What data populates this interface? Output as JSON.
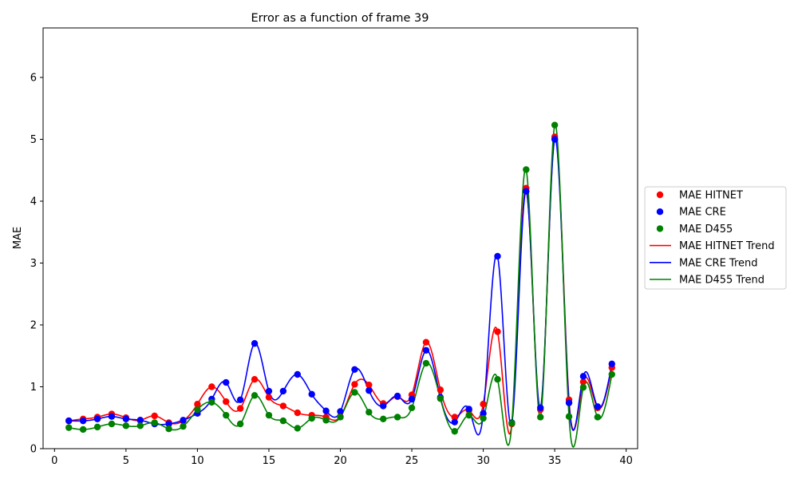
{
  "chart_data": {
    "type": "line",
    "title": "Error as a function of frame 39",
    "xlabel": "",
    "ylabel": "MAE",
    "xlim": [
      -0.8,
      40.8
    ],
    "ylim": [
      0,
      6.8
    ],
    "xticks": [
      0,
      5,
      10,
      15,
      20,
      25,
      30,
      35,
      40
    ],
    "yticks": [
      0,
      1,
      2,
      3,
      4,
      5,
      6
    ],
    "grid": false,
    "legend_position": "center-right-outside",
    "x": [
      1,
      2,
      3,
      4,
      5,
      6,
      7,
      8,
      9,
      10,
      11,
      12,
      13,
      14,
      15,
      16,
      17,
      18,
      19,
      20,
      21,
      22,
      23,
      24,
      25,
      26,
      27,
      28,
      29,
      30,
      31,
      32,
      33,
      34,
      35,
      36,
      37,
      38,
      39
    ],
    "series": [
      {
        "name": "MAE HITNET",
        "color": "#ff0000",
        "values": [
          0.45,
          0.48,
          0.51,
          0.56,
          0.5,
          0.46,
          0.53,
          0.42,
          0.45,
          0.72,
          1.0,
          0.76,
          0.65,
          1.12,
          0.83,
          0.69,
          0.58,
          0.54,
          0.51,
          0.52,
          1.04,
          1.03,
          0.73,
          0.84,
          0.87,
          1.72,
          0.95,
          0.51,
          0.62,
          0.72,
          1.89,
          0.4,
          4.21,
          0.63,
          5.04,
          0.79,
          1.08,
          0.66,
          1.31
        ]
      },
      {
        "name": "MAE CRE",
        "color": "#0000ff",
        "values": [
          0.45,
          0.45,
          0.48,
          0.52,
          0.48,
          0.46,
          0.4,
          0.4,
          0.46,
          0.57,
          0.8,
          1.07,
          0.79,
          1.7,
          0.93,
          0.93,
          1.2,
          0.88,
          0.61,
          0.6,
          1.28,
          0.94,
          0.69,
          0.85,
          0.8,
          1.59,
          0.83,
          0.43,
          0.64,
          0.57,
          3.11,
          0.42,
          4.16,
          0.66,
          5.0,
          0.74,
          1.17,
          0.68,
          1.37
        ]
      },
      {
        "name": "MAE D455",
        "color": "#008000",
        "values": [
          0.34,
          0.31,
          0.35,
          0.4,
          0.37,
          0.37,
          0.42,
          0.32,
          0.36,
          0.63,
          0.75,
          0.54,
          0.4,
          0.86,
          0.54,
          0.45,
          0.33,
          0.49,
          0.46,
          0.51,
          0.91,
          0.59,
          0.48,
          0.51,
          0.66,
          1.38,
          0.81,
          0.28,
          0.54,
          0.49,
          1.12,
          0.41,
          4.51,
          0.51,
          5.23,
          0.52,
          0.99,
          0.51,
          1.2
        ]
      }
    ],
    "legend": [
      {
        "label": "MAE HITNET",
        "kind": "marker",
        "color": "#ff0000"
      },
      {
        "label": "MAE CRE",
        "kind": "marker",
        "color": "#0000ff"
      },
      {
        "label": "MAE D455",
        "kind": "marker",
        "color": "#008000"
      },
      {
        "label": "MAE HITNET Trend",
        "kind": "line",
        "color": "#ff0000"
      },
      {
        "label": "MAE CRE Trend",
        "kind": "line",
        "color": "#0000ff"
      },
      {
        "label": "MAE D455 Trend",
        "kind": "line",
        "color": "#008000"
      }
    ]
  }
}
